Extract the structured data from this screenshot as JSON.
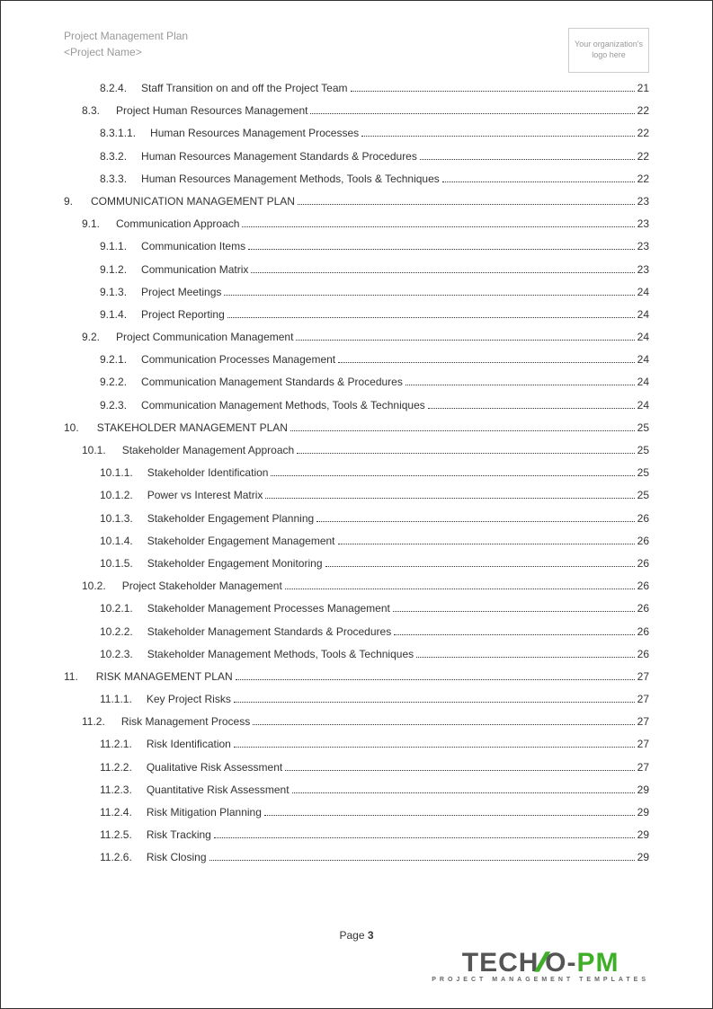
{
  "header": {
    "title_line1": "Project Management Plan",
    "title_line2": "<Project Name>",
    "logo_placeholder": "Your organization's logo here"
  },
  "footer": {
    "page_label": "Page",
    "page_number": "3",
    "brand_left": "TECH",
    "brand_n": "N",
    "brand_o": "O",
    "brand_dash": "-",
    "brand_pm": "PM",
    "tagline": "PROJECT MANAGEMENT TEMPLATES"
  },
  "colors": {
    "text_muted": "#999999",
    "text_body": "#333333",
    "accent_green": "#3fae29",
    "border": "#cccccc"
  },
  "toc": [
    {
      "num": "8.2.4.",
      "title": "Staff Transition on and off the Project Team",
      "page": "21",
      "level": 2
    },
    {
      "num": "8.3.",
      "title": "Project Human Resources Management",
      "page": "22",
      "level": 1
    },
    {
      "num": "8.3.1.1.",
      "title": "Human Resources Management Processes",
      "page": "22",
      "level": 2
    },
    {
      "num": "8.3.2.",
      "title": "Human Resources Management Standards & Procedures",
      "page": "22",
      "level": 2
    },
    {
      "num": "8.3.3.",
      "title": "Human Resources Management Methods, Tools & Techniques",
      "page": "22",
      "level": 2
    },
    {
      "num": "9.",
      "title": "COMMUNICATION MANAGEMENT PLAN",
      "page": "23",
      "level": 0
    },
    {
      "num": "9.1.",
      "title": "Communication Approach",
      "page": "23",
      "level": 1
    },
    {
      "num": "9.1.1.",
      "title": "Communication Items",
      "page": "23",
      "level": 2
    },
    {
      "num": "9.1.2.",
      "title": "Communication Matrix",
      "page": "23",
      "level": 2
    },
    {
      "num": "9.1.3.",
      "title": "Project Meetings",
      "page": "24",
      "level": 2
    },
    {
      "num": "9.1.4.",
      "title": "Project Reporting",
      "page": "24",
      "level": 2
    },
    {
      "num": "9.2.",
      "title": "Project Communication Management",
      "page": "24",
      "level": 1
    },
    {
      "num": "9.2.1.",
      "title": "Communication Processes Management",
      "page": "24",
      "level": 2
    },
    {
      "num": "9.2.2.",
      "title": "Communication Management Standards & Procedures",
      "page": "24",
      "level": 2
    },
    {
      "num": "9.2.3.",
      "title": "Communication Management Methods, Tools & Techniques",
      "page": "24",
      "level": 2
    },
    {
      "num": "10.",
      "title": "STAKEHOLDER MANAGEMENT PLAN",
      "page": "25",
      "level": 0
    },
    {
      "num": "10.1.",
      "title": "Stakeholder Management Approach",
      "page": "25",
      "level": 1
    },
    {
      "num": "10.1.1.",
      "title": "Stakeholder Identification",
      "page": "25",
      "level": 2
    },
    {
      "num": "10.1.2.",
      "title": "Power vs Interest Matrix",
      "page": "25",
      "level": 2
    },
    {
      "num": "10.1.3.",
      "title": "Stakeholder Engagement Planning",
      "page": "26",
      "level": 2
    },
    {
      "num": "10.1.4.",
      "title": "Stakeholder Engagement Management",
      "page": "26",
      "level": 2
    },
    {
      "num": "10.1.5.",
      "title": "Stakeholder Engagement Monitoring",
      "page": "26",
      "level": 2
    },
    {
      "num": "10.2.",
      "title": "Project Stakeholder Management",
      "page": "26",
      "level": 1
    },
    {
      "num": "10.2.1.",
      "title": "Stakeholder Management Processes Management",
      "page": "26",
      "level": 2
    },
    {
      "num": "10.2.2.",
      "title": "Stakeholder Management Standards & Procedures",
      "page": "26",
      "level": 2
    },
    {
      "num": "10.2.3.",
      "title": "Stakeholder Management Methods, Tools & Techniques",
      "page": "26",
      "level": 2
    },
    {
      "num": "11.",
      "title": "RISK MANAGEMENT PLAN",
      "page": "27",
      "level": 0
    },
    {
      "num": "11.1.1.",
      "title": "Key Project Risks",
      "page": "27",
      "level": 2
    },
    {
      "num": "11.2.",
      "title": "Risk Management Process",
      "page": "27",
      "level": 1
    },
    {
      "num": "11.2.1.",
      "title": "Risk Identification",
      "page": "27",
      "level": 2
    },
    {
      "num": "11.2.2.",
      "title": "Qualitative Risk Assessment",
      "page": "27",
      "level": 2
    },
    {
      "num": "11.2.3.",
      "title": "Quantitative Risk Assessment",
      "page": "29",
      "level": 2
    },
    {
      "num": "11.2.4.",
      "title": "Risk Mitigation Planning",
      "page": "29",
      "level": 2
    },
    {
      "num": "11.2.5.",
      "title": "Risk Tracking",
      "page": "29",
      "level": 2
    },
    {
      "num": "11.2.6.",
      "title": "Risk Closing",
      "page": "29",
      "level": 2
    }
  ]
}
